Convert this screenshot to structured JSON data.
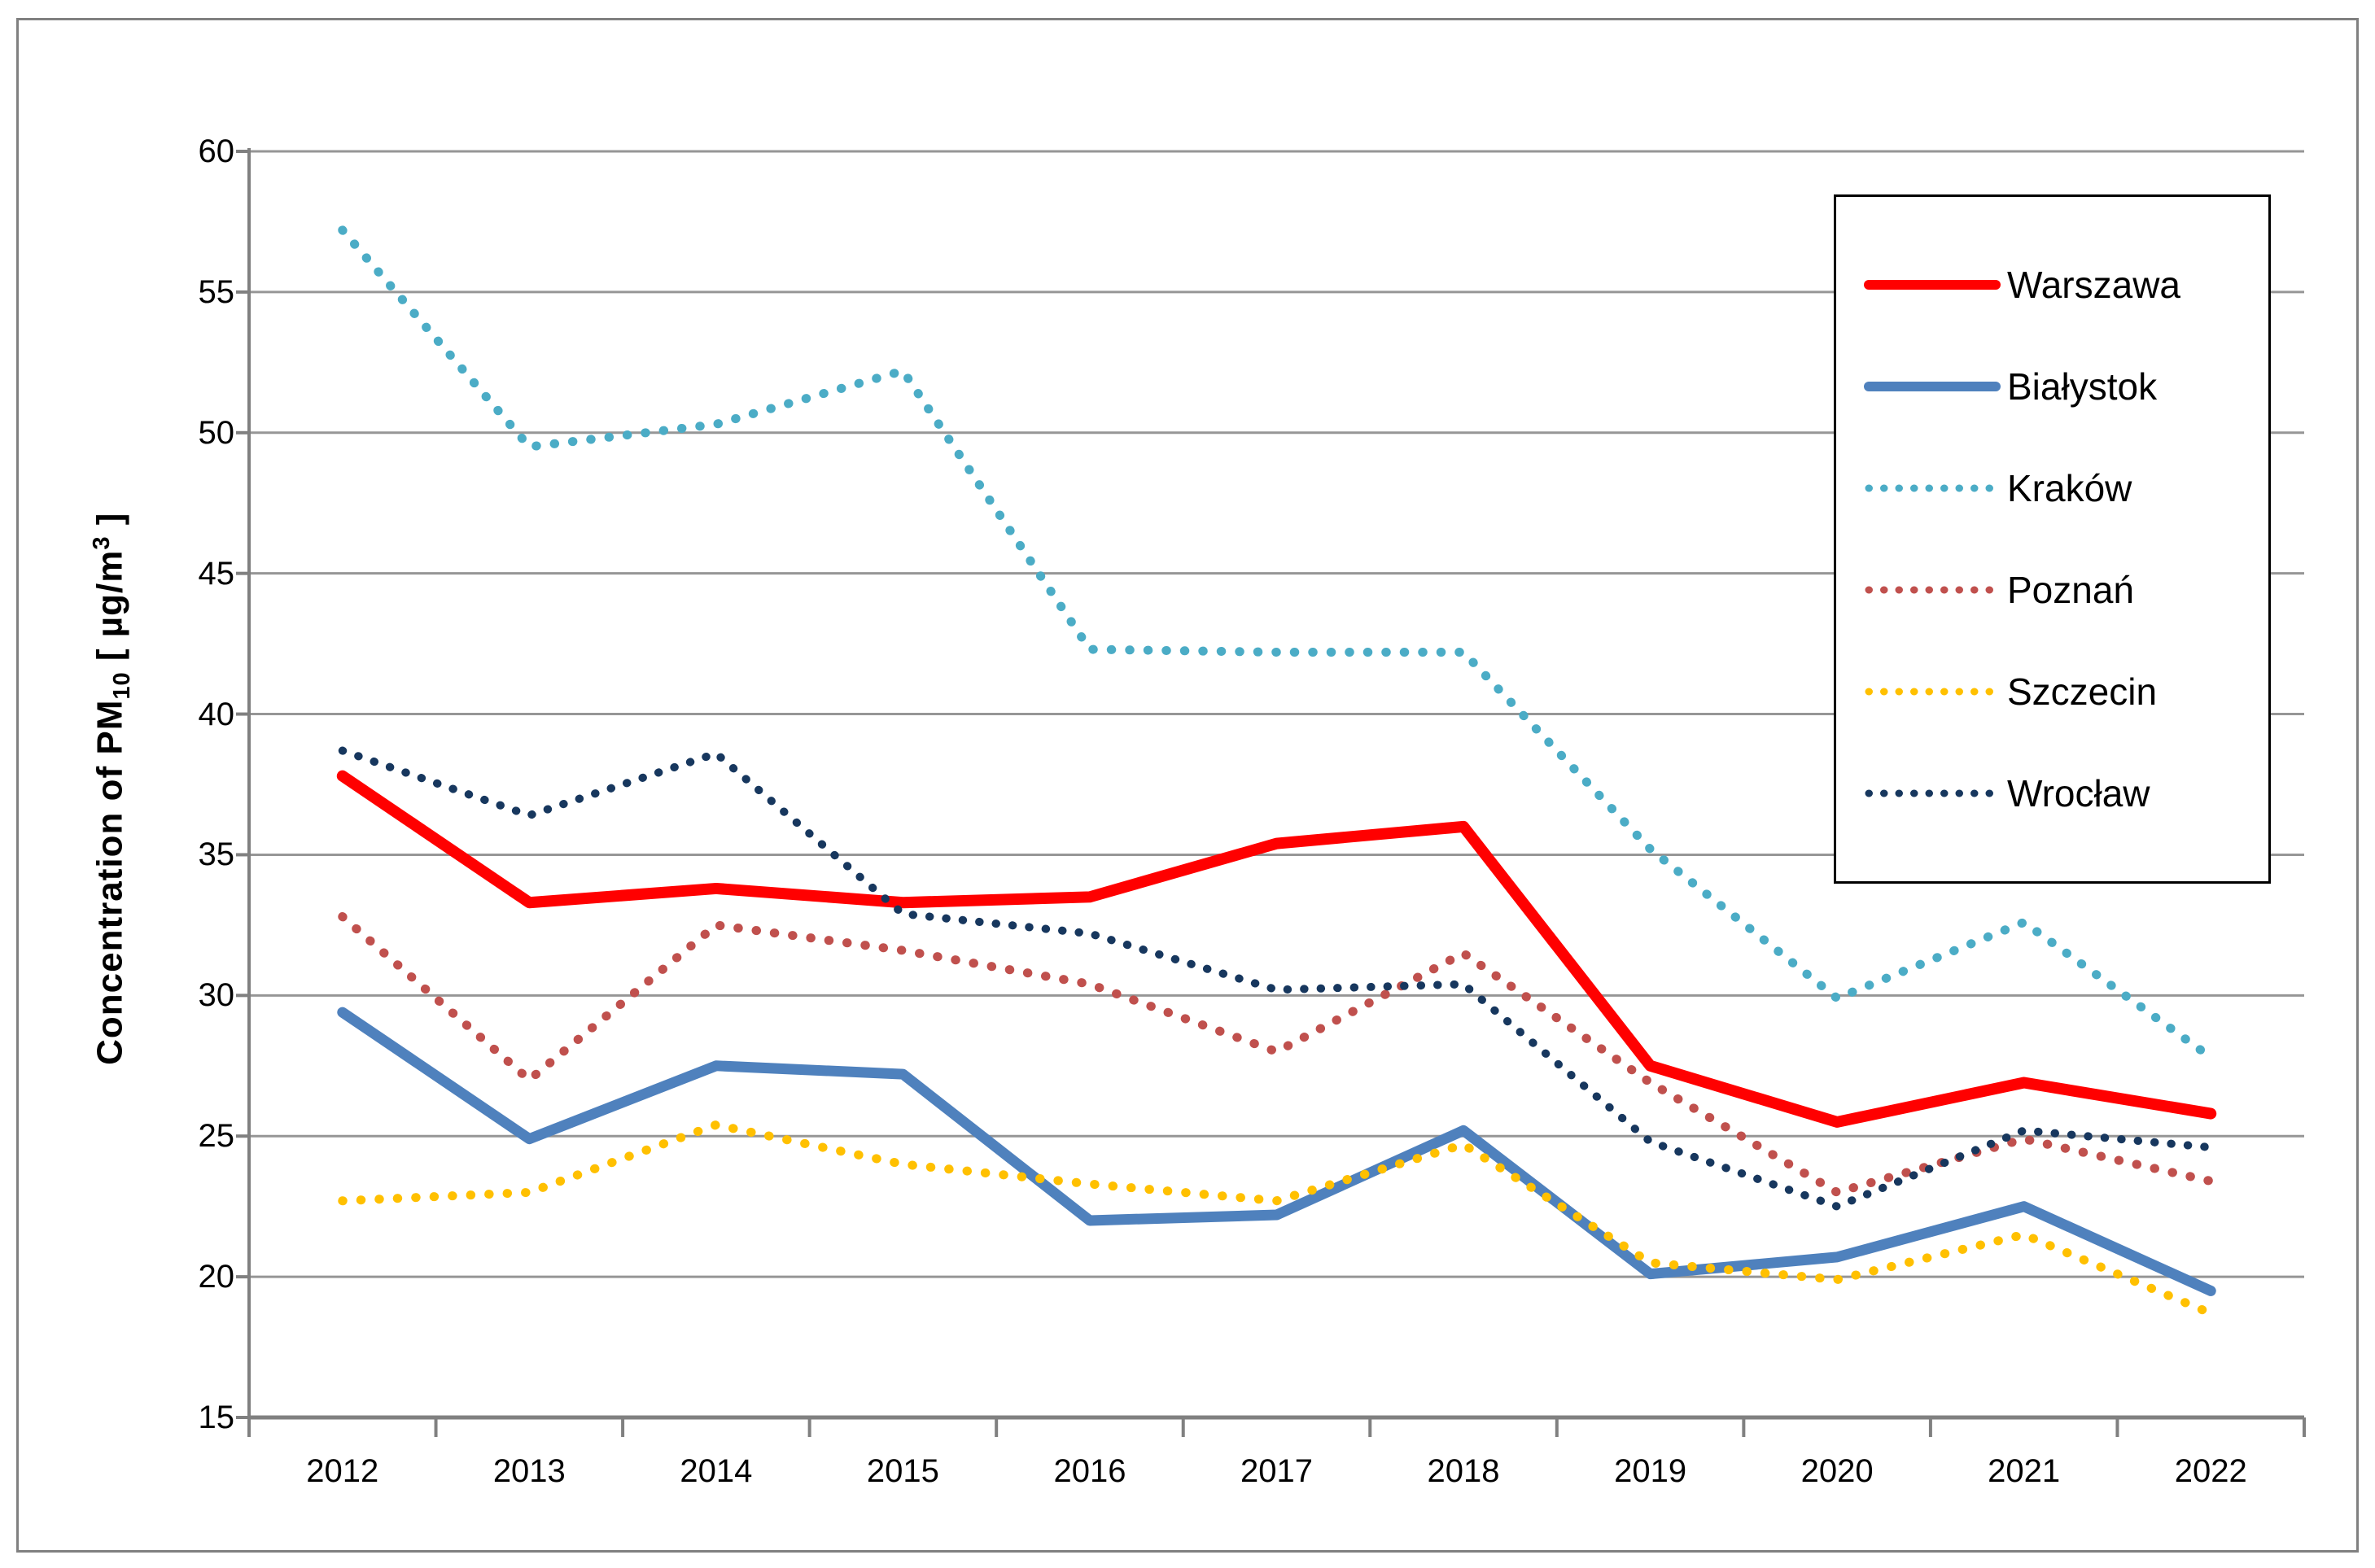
{
  "figure": {
    "background": "#FFFFFF",
    "border_color": "#808080",
    "gridline_color": "#969696",
    "axis_color": "#808080",
    "text_color": "#000000"
  },
  "y_axis": {
    "title_parts": {
      "prefix": "Concentration of PM",
      "sub": "10",
      "mid": " [ µg/m",
      "sup": "3",
      "suffix": " ]"
    },
    "min": 15,
    "max": 60,
    "tick_step": 5,
    "tick_labels": [
      "15",
      "20",
      "25",
      "30",
      "35",
      "40",
      "45",
      "50",
      "55",
      "60"
    ]
  },
  "x_axis": {
    "labels": [
      "2012",
      "2013",
      "2014",
      "2015",
      "2016",
      "2017",
      "2018",
      "2019",
      "2020",
      "2021",
      "2022"
    ]
  },
  "legend": {
    "position": "top-right",
    "entries": [
      "Warszawa",
      "Białystok",
      "Kraków",
      "Poznań",
      "Szczecin",
      "Wrocław"
    ]
  },
  "chart_data": {
    "type": "line",
    "title": "",
    "xlabel": "",
    "ylabel": "Concentration of PM10 [ µg/m3 ]",
    "ylim": [
      15,
      60
    ],
    "ytick_step": 5,
    "grid": "horizontal",
    "legend_position": "top-right",
    "categories": [
      "2012",
      "2013",
      "2014",
      "2015",
      "2016",
      "2017",
      "2018",
      "2019",
      "2020",
      "2021",
      "2022"
    ],
    "series": [
      {
        "name": "Warszawa",
        "color": "#FF0000",
        "style": "solid",
        "stroke_width": 14,
        "values": [
          37.8,
          33.3,
          33.8,
          33.3,
          33.5,
          35.4,
          36.0,
          27.5,
          25.5,
          26.9,
          25.8
        ]
      },
      {
        "name": "Białystok",
        "color": "#4F81BD",
        "style": "solid",
        "stroke_width": 13,
        "values": [
          29.4,
          24.9,
          27.5,
          27.2,
          22.0,
          22.2,
          25.2,
          20.1,
          20.7,
          22.5,
          19.5
        ]
      },
      {
        "name": "Kraków",
        "color": "#4BACC6",
        "style": "dotted",
        "stroke_width": 11,
        "values": [
          57.2,
          49.5,
          50.3,
          52.2,
          42.3,
          42.2,
          42.2,
          35.2,
          29.9,
          32.6,
          27.8
        ]
      },
      {
        "name": "Poznań",
        "color": "#C0504D",
        "style": "dotted",
        "stroke_width": 11,
        "values": [
          32.8,
          27.0,
          32.5,
          31.6,
          30.4,
          28.0,
          31.5,
          26.9,
          23.0,
          24.9,
          23.4
        ]
      },
      {
        "name": "Szczecin",
        "color": "#FFC000",
        "style": "dotted",
        "stroke_width": 11,
        "values": [
          22.7,
          23.0,
          25.4,
          24.0,
          23.3,
          22.7,
          24.7,
          20.5,
          19.9,
          21.5,
          18.7
        ]
      },
      {
        "name": "Wrocław",
        "color": "#17375E",
        "style": "dotted",
        "stroke_width": 10,
        "values": [
          38.7,
          36.4,
          38.6,
          32.9,
          32.2,
          30.2,
          30.4,
          24.8,
          22.5,
          25.2,
          24.6
        ]
      }
    ]
  }
}
